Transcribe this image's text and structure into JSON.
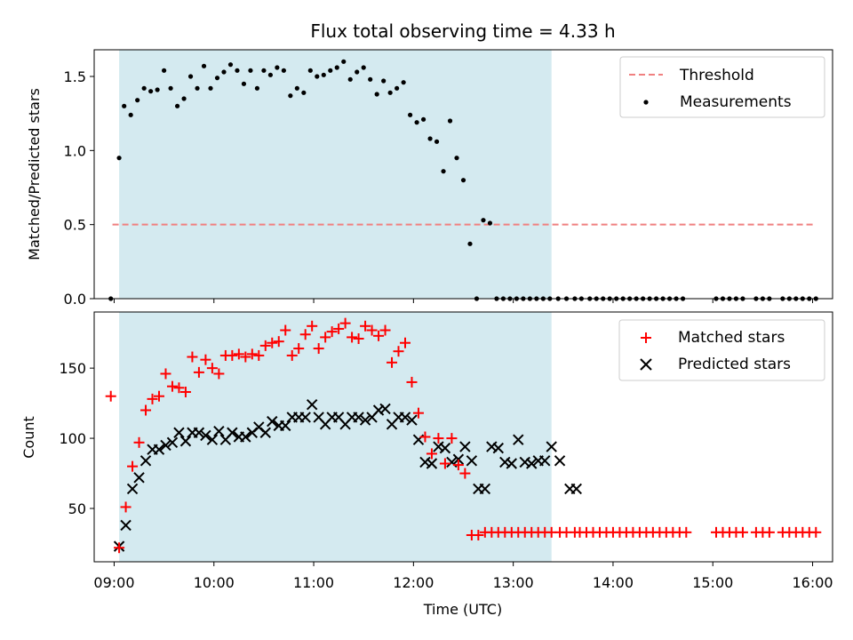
{
  "chart_data": {
    "title": "Flux total observing time = 4.33 h",
    "xlabel": "Time (UTC)",
    "xlim": [
      "08:48",
      "16:12"
    ],
    "x_ticks": [
      "09:00",
      "10:00",
      "11:00",
      "12:00",
      "13:00",
      "14:00",
      "15:00",
      "16:00"
    ],
    "shaded_interval": {
      "start": "09:03",
      "end": "13:23",
      "color": "#d4eaf0"
    },
    "panels": [
      {
        "type": "scatter",
        "ylabel": "Matched/Predicted stars",
        "ylim": [
          0,
          1.68
        ],
        "y_ticks": [
          "0.0",
          "0.5",
          "1.0",
          "1.5"
        ],
        "threshold": {
          "name": "Threshold",
          "value": 0.5,
          "color": "#f08080",
          "x_range": [
            "08:59",
            "16:01"
          ]
        },
        "legend_position": "upper-right",
        "series": [
          {
            "name": "Measurements",
            "marker": "dot",
            "color": "#000000",
            "x": [
              "08:58",
              "09:03",
              "09:06",
              "09:10",
              "09:14",
              "09:18",
              "09:22",
              "09:26",
              "09:30",
              "09:34",
              "09:38",
              "09:42",
              "09:46",
              "09:50",
              "09:54",
              "09:58",
              "10:02",
              "10:06",
              "10:10",
              "10:14",
              "10:18",
              "10:22",
              "10:26",
              "10:30",
              "10:34",
              "10:38",
              "10:42",
              "10:46",
              "10:50",
              "10:54",
              "10:58",
              "11:02",
              "11:06",
              "11:10",
              "11:14",
              "11:18",
              "11:22",
              "11:26",
              "11:30",
              "11:34",
              "11:38",
              "11:42",
              "11:46",
              "11:50",
              "11:54",
              "11:58",
              "12:02",
              "12:06",
              "12:10",
              "12:14",
              "12:18",
              "12:22",
              "12:26",
              "12:30",
              "12:34",
              "12:38",
              "12:42",
              "12:46",
              "12:50",
              "12:54",
              "12:58",
              "13:02",
              "13:06",
              "13:10",
              "13:14",
              "13:18",
              "13:22",
              "13:27",
              "13:32",
              "13:37",
              "13:41",
              "13:46",
              "13:50",
              "13:54",
              "13:58",
              "14:02",
              "14:06",
              "14:10",
              "14:14",
              "14:18",
              "14:22",
              "14:26",
              "14:30",
              "14:34",
              "14:38",
              "14:42",
              "15:02",
              "15:06",
              "15:10",
              "15:14",
              "15:18",
              "15:26",
              "15:30",
              "15:34",
              "15:42",
              "15:46",
              "15:50",
              "15:54",
              "15:58",
              "16:02"
            ],
            "y": [
              0.0,
              0.95,
              1.3,
              1.24,
              1.34,
              1.42,
              1.4,
              1.41,
              1.54,
              1.42,
              1.3,
              1.35,
              1.5,
              1.42,
              1.57,
              1.42,
              1.49,
              1.53,
              1.58,
              1.54,
              1.45,
              1.54,
              1.42,
              1.54,
              1.51,
              1.56,
              1.54,
              1.37,
              1.42,
              1.39,
              1.54,
              1.5,
              1.51,
              1.54,
              1.56,
              1.6,
              1.48,
              1.53,
              1.56,
              1.48,
              1.38,
              1.47,
              1.39,
              1.42,
              1.46,
              1.24,
              1.19,
              1.21,
              1.08,
              1.06,
              0.86,
              1.2,
              0.95,
              0.8,
              0.37,
              0.0,
              0.53,
              0.51,
              0.0,
              0.0,
              0.0,
              0.0,
              0.0,
              0.0,
              0.0,
              0.0,
              0.0,
              0.0,
              0.0,
              0.0,
              0.0,
              0.0,
              0.0,
              0.0,
              0.0,
              0.0,
              0.0,
              0.0,
              0.0,
              0.0,
              0.0,
              0.0,
              0.0,
              0.0,
              0.0,
              0.0,
              0.0,
              0.0,
              0.0,
              0.0,
              0.0,
              0.0,
              0.0,
              0.0,
              0.0,
              0.0,
              0.0,
              0.0,
              0.0,
              0.0
            ]
          }
        ]
      },
      {
        "type": "scatter",
        "ylabel": "Count",
        "ylim": [
          12,
          190
        ],
        "y_ticks": [
          "50",
          "100",
          "150"
        ],
        "legend_position": "upper-right",
        "series": [
          {
            "name": "Matched stars",
            "marker": "plus",
            "color": "#ff0000",
            "x": [
              "08:58",
              "09:03",
              "09:07",
              "09:11",
              "09:15",
              "09:19",
              "09:23",
              "09:27",
              "09:31",
              "09:35",
              "09:39",
              "09:43",
              "09:47",
              "09:51",
              "09:55",
              "09:59",
              "10:03",
              "10:07",
              "10:11",
              "10:15",
              "10:19",
              "10:23",
              "10:27",
              "10:31",
              "10:35",
              "10:39",
              "10:43",
              "10:47",
              "10:51",
              "10:55",
              "10:59",
              "11:03",
              "11:07",
              "11:11",
              "11:15",
              "11:19",
              "11:23",
              "11:27",
              "11:31",
              "11:35",
              "11:39",
              "11:43",
              "11:47",
              "11:51",
              "11:55",
              "11:59",
              "12:03",
              "12:07",
              "12:11",
              "12:15",
              "12:19",
              "12:23",
              "12:27",
              "12:31",
              "12:35",
              "12:39",
              "12:43",
              "12:47",
              "12:51",
              "12:55",
              "12:59",
              "13:03",
              "13:07",
              "13:11",
              "13:15",
              "13:19",
              "13:23",
              "13:28",
              "13:32",
              "13:37",
              "13:40",
              "13:44",
              "13:48",
              "13:52",
              "13:56",
              "14:00",
              "14:04",
              "14:08",
              "14:12",
              "14:16",
              "14:20",
              "14:24",
              "14:28",
              "14:32",
              "14:36",
              "14:40",
              "14:44",
              "15:02",
              "15:06",
              "15:10",
              "15:14",
              "15:18",
              "15:26",
              "15:30",
              "15:34",
              "15:42",
              "15:46",
              "15:50",
              "15:54",
              "15:58",
              "16:02"
            ],
            "y": [
              130,
              22,
              51,
              80,
              97,
              120,
              128,
              130,
              146,
              137,
              136,
              133,
              158,
              147,
              156,
              150,
              146,
              159,
              159,
              160,
              158,
              160,
              159,
              166,
              168,
              169,
              177,
              159,
              164,
              174,
              180,
              164,
              172,
              176,
              178,
              182,
              172,
              171,
              180,
              177,
              173,
              177,
              154,
              162,
              168,
              140,
              118,
              101,
              89,
              100,
              82,
              100,
              81,
              75,
              31,
              31,
              33,
              33,
              33,
              33,
              33,
              33,
              33,
              33,
              33,
              33,
              33,
              33,
              33,
              33,
              33,
              33,
              33,
              33,
              33,
              33,
              33,
              33,
              33,
              33,
              33,
              33,
              33,
              33,
              33,
              33,
              33,
              33,
              33,
              33,
              33,
              33,
              33,
              33,
              33,
              33,
              33,
              33,
              33,
              33,
              33
            ]
          },
          {
            "name": "Predicted stars",
            "marker": "x",
            "color": "#000000",
            "x": [
              "09:03",
              "09:07",
              "09:11",
              "09:15",
              "09:19",
              "09:23",
              "09:27",
              "09:31",
              "09:35",
              "09:39",
              "09:43",
              "09:47",
              "09:51",
              "09:55",
              "09:59",
              "10:03",
              "10:07",
              "10:11",
              "10:15",
              "10:19",
              "10:23",
              "10:27",
              "10:31",
              "10:35",
              "10:39",
              "10:43",
              "10:47",
              "10:51",
              "10:55",
              "10:59",
              "11:03",
              "11:07",
              "11:11",
              "11:15",
              "11:19",
              "11:23",
              "11:27",
              "11:31",
              "11:35",
              "11:39",
              "11:43",
              "11:47",
              "11:51",
              "11:55",
              "11:59",
              "12:03",
              "12:07",
              "12:11",
              "12:15",
              "12:19",
              "12:23",
              "12:27",
              "12:31",
              "12:35",
              "12:39",
              "12:43",
              "12:47",
              "12:51",
              "12:55",
              "12:59",
              "13:03",
              "13:07",
              "13:11",
              "13:15",
              "13:19",
              "13:23",
              "13:28",
              "13:34",
              "13:38"
            ],
            "y": [
              23,
              38,
              64,
              72,
              84,
              92,
              92,
              95,
              97,
              104,
              98,
              104,
              104,
              102,
              99,
              105,
              99,
              104,
              101,
              101,
              104,
              108,
              104,
              112,
              109,
              109,
              115,
              115,
              115,
              124,
              115,
              110,
              115,
              115,
              110,
              115,
              115,
              113,
              115,
              120,
              121,
              110,
              115,
              115,
              113,
              99,
              83,
              82,
              94,
              93,
              83,
              85,
              94,
              84,
              64,
              64,
              94,
              93,
              83,
              82,
              99,
              83,
              82,
              84,
              84,
              94,
              84,
              64,
              64
            ]
          }
        ]
      }
    ]
  }
}
